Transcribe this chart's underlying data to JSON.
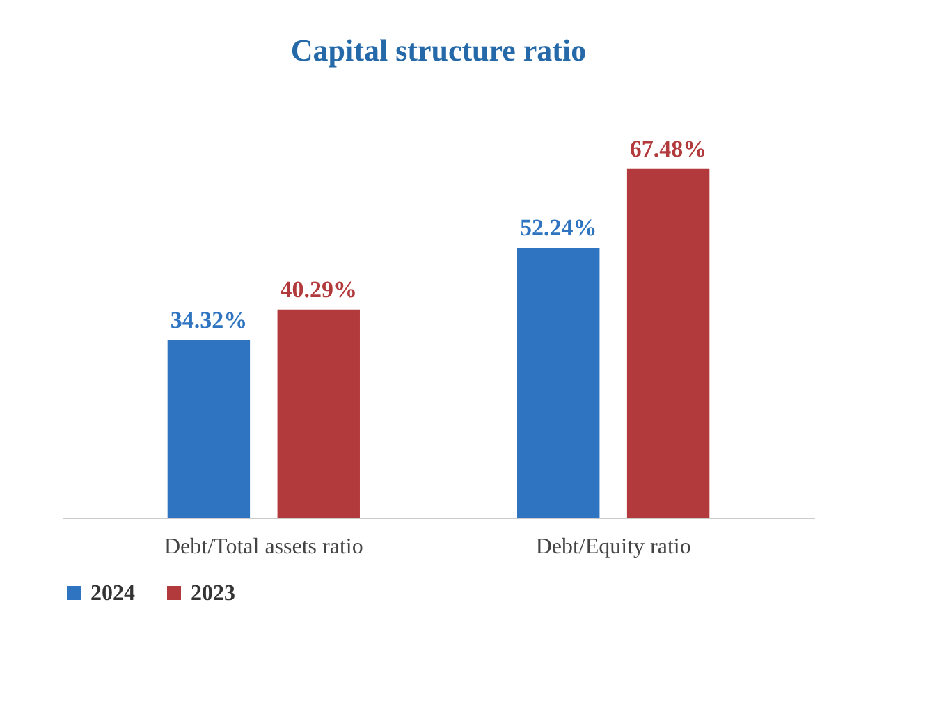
{
  "chart_data": {
    "type": "bar",
    "title": "Capital structure ratio",
    "categories": [
      "Debt/Total assets ratio",
      "Debt/Equity ratio"
    ],
    "series": [
      {
        "name": "2024",
        "color": "#2e74c0",
        "values": [
          34.32,
          52.24
        ],
        "value_labels": [
          "34.32%",
          "52.24%"
        ]
      },
      {
        "name": "2023",
        "color": "#b23a3c",
        "values": [
          40.29,
          67.48
        ],
        "value_labels": [
          "40.29%",
          "67.48%"
        ]
      }
    ],
    "legend": "bottom",
    "grid": false
  }
}
